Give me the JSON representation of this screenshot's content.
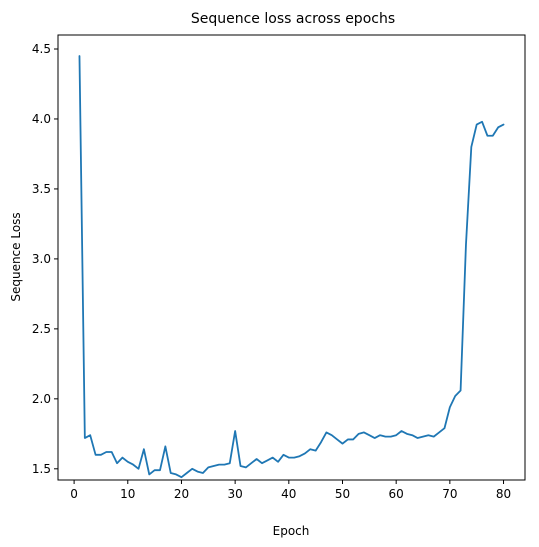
{
  "chart_data": {
    "type": "line",
    "title": "Sequence loss across epochs",
    "xlabel": "Epoch",
    "ylabel": "Sequence Loss",
    "xlim": [
      -3,
      84
    ],
    "ylim": [
      1.42,
      4.6
    ],
    "xticks": [
      0,
      10,
      20,
      30,
      40,
      50,
      60,
      70,
      80
    ],
    "yticks": [
      1.5,
      2.0,
      2.5,
      3.0,
      3.5,
      4.0,
      4.5
    ],
    "ytick_labels": [
      "1.5",
      "2.0",
      "2.5",
      "3.0",
      "3.5",
      "4.0",
      "4.5"
    ],
    "grid": false,
    "color": "#1f77b4",
    "series": [
      {
        "x": [
          1,
          2,
          3,
          4,
          5,
          6,
          7,
          8,
          9,
          10,
          11,
          12,
          13,
          14,
          15,
          16,
          17,
          18,
          19,
          20,
          21,
          22,
          23,
          24,
          25,
          26,
          27,
          28,
          29,
          30,
          31,
          32,
          33,
          34,
          35,
          36,
          37,
          38,
          39,
          40,
          41,
          42,
          43,
          44,
          45,
          46,
          47,
          48,
          49,
          50,
          51,
          52,
          53,
          54,
          55,
          56,
          57,
          58,
          59,
          60,
          61,
          62,
          63,
          64,
          65,
          66,
          67,
          68,
          69,
          70,
          71,
          72,
          73,
          74,
          75,
          76,
          77,
          78,
          79,
          80
        ],
        "values": [
          4.45,
          1.72,
          1.74,
          1.6,
          1.6,
          1.62,
          1.62,
          1.54,
          1.58,
          1.55,
          1.53,
          1.5,
          1.64,
          1.46,
          1.49,
          1.49,
          1.66,
          1.47,
          1.46,
          1.44,
          1.47,
          1.5,
          1.48,
          1.47,
          1.51,
          1.52,
          1.53,
          1.53,
          1.54,
          1.77,
          1.52,
          1.51,
          1.54,
          1.57,
          1.54,
          1.56,
          1.58,
          1.55,
          1.6,
          1.58,
          1.58,
          1.59,
          1.61,
          1.64,
          1.63,
          1.69,
          1.76,
          1.74,
          1.71,
          1.68,
          1.71,
          1.71,
          1.75,
          1.76,
          1.74,
          1.72,
          1.74,
          1.73,
          1.73,
          1.74,
          1.77,
          1.75,
          1.74,
          1.72,
          1.73,
          1.74,
          1.73,
          1.76,
          1.79,
          1.94,
          2.02,
          2.06,
          3.1,
          3.8,
          3.96,
          3.98,
          3.88,
          3.88,
          3.94,
          3.96
        ]
      }
    ]
  }
}
